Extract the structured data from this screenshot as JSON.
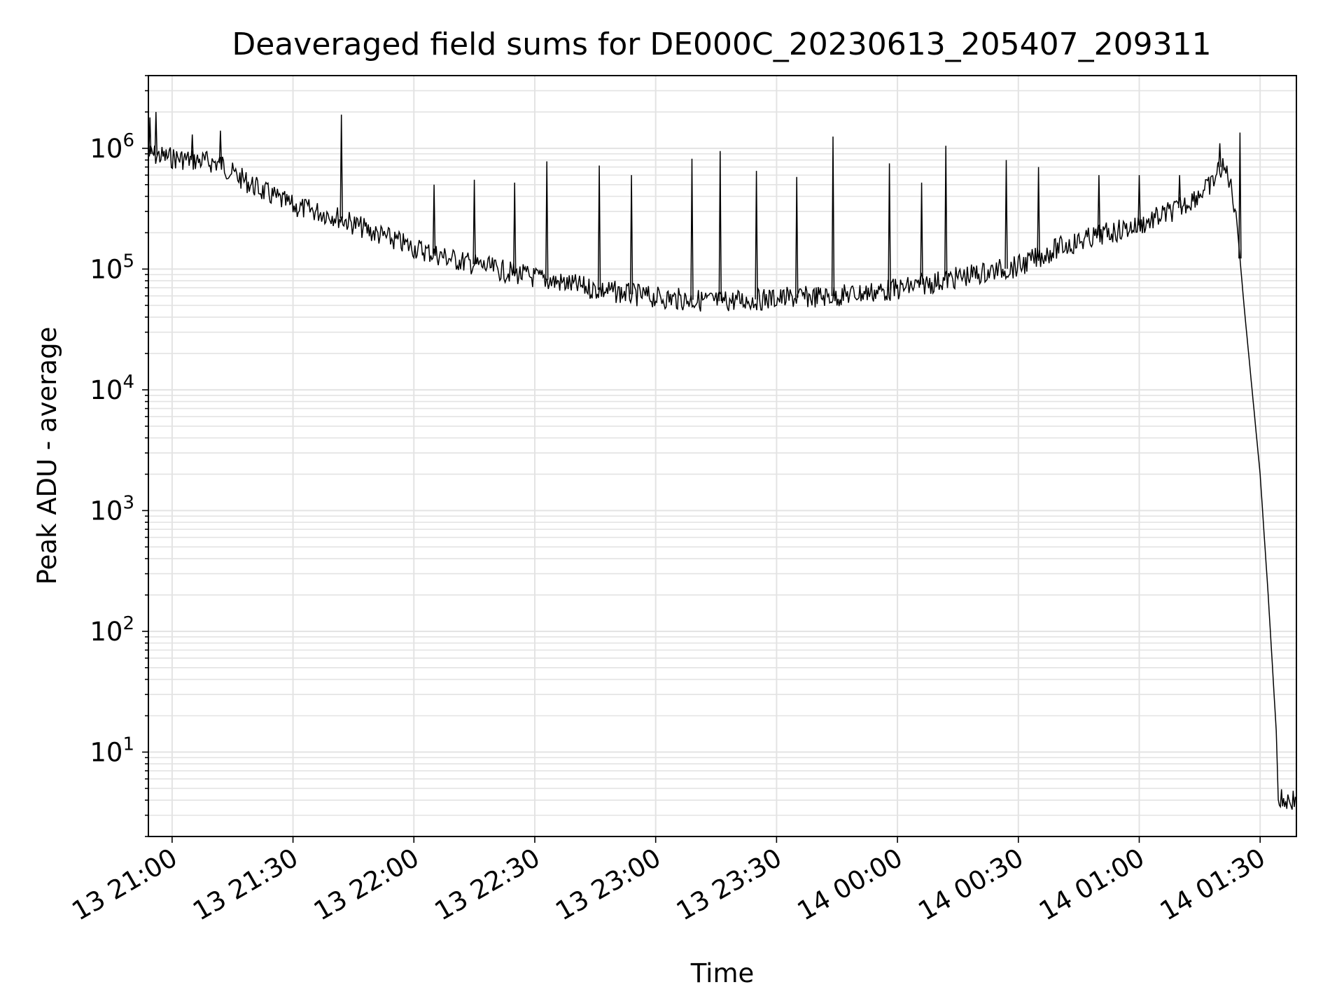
{
  "chart_data": {
    "type": "line",
    "title": "Deaveraged field sums for DE000C_20230613_205407_209311",
    "xlabel": "Time",
    "ylabel": "Peak ADU - average",
    "y_scale": "log",
    "ylim": [
      2,
      4000000
    ],
    "xlim": [
      "2023-06-13 20:54:07",
      "2023-06-14 01:39:00"
    ],
    "grid": true,
    "x_ticks": [
      {
        "value": "2023-06-13 21:00",
        "label": "13 21:00"
      },
      {
        "value": "2023-06-13 21:30",
        "label": "13 21:30"
      },
      {
        "value": "2023-06-13 22:00",
        "label": "13 22:00"
      },
      {
        "value": "2023-06-13 22:30",
        "label": "13 22:30"
      },
      {
        "value": "2023-06-13 23:00",
        "label": "13 23:00"
      },
      {
        "value": "2023-06-13 23:30",
        "label": "13 23:30"
      },
      {
        "value": "2023-06-14 00:00",
        "label": "14 00:00"
      },
      {
        "value": "2023-06-14 00:30",
        "label": "14 00:30"
      },
      {
        "value": "2023-06-14 01:00",
        "label": "14 01:00"
      },
      {
        "value": "2023-06-14 01:30",
        "label": "14 01:30"
      }
    ],
    "y_ticks": [
      {
        "value": 10,
        "base": "10",
        "exp": "1"
      },
      {
        "value": 100,
        "base": "10",
        "exp": "2"
      },
      {
        "value": 1000,
        "base": "10",
        "exp": "3"
      },
      {
        "value": 10000,
        "base": "10",
        "exp": "4"
      },
      {
        "value": 100000,
        "base": "10",
        "exp": "5"
      },
      {
        "value": 1000000,
        "base": "10",
        "exp": "6"
      }
    ],
    "series": [
      {
        "color": "#000000",
        "x": [
          "2023-06-13 20:54:07",
          "2023-06-13 20:58",
          "2023-06-13 21:05",
          "2023-06-13 21:12",
          "2023-06-13 21:15",
          "2023-06-13 21:22",
          "2023-06-13 21:30",
          "2023-06-13 21:40",
          "2023-06-13 21:50",
          "2023-06-13 22:00",
          "2023-06-13 22:10",
          "2023-06-13 22:20",
          "2023-06-13 22:30",
          "2023-06-13 22:45",
          "2023-06-13 23:00",
          "2023-06-13 23:15",
          "2023-06-13 23:30",
          "2023-06-13 23:45",
          "2023-06-14 00:00",
          "2023-06-14 00:15",
          "2023-06-14 00:30",
          "2023-06-14 00:40",
          "2023-06-14 00:50",
          "2023-06-14 01:00",
          "2023-06-14 01:10",
          "2023-06-14 01:18",
          "2023-06-14 01:20",
          "2023-06-14 01:22",
          "2023-06-14 01:24",
          "2023-06-14 01:26",
          "2023-06-14 01:28",
          "2023-06-14 01:30",
          "2023-06-14 01:32",
          "2023-06-14 01:34",
          "2023-06-14 01:34:30",
          "2023-06-14 01:39"
        ],
        "y": [
          900000,
          850000,
          800000,
          750000,
          620000,
          450000,
          330000,
          280000,
          200000,
          150000,
          120000,
          100000,
          85000,
          68000,
          58000,
          54000,
          57000,
          60000,
          68000,
          85000,
          105000,
          150000,
          190000,
          230000,
          320000,
          500000,
          700000,
          620000,
          300000,
          50000,
          10000,
          2000,
          200,
          15,
          4,
          4
        ],
        "spikes": [
          {
            "x": "2023-06-13 20:54:30",
            "y": 1800000
          },
          {
            "x": "2023-06-13 20:56",
            "y": 2000000
          },
          {
            "x": "2023-06-13 21:05",
            "y": 1300000
          },
          {
            "x": "2023-06-13 21:12",
            "y": 1400000
          },
          {
            "x": "2023-06-13 21:42",
            "y": 1900000
          },
          {
            "x": "2023-06-13 22:05",
            "y": 500000
          },
          {
            "x": "2023-06-13 22:15",
            "y": 550000
          },
          {
            "x": "2023-06-13 22:25",
            "y": 520000
          },
          {
            "x": "2023-06-13 22:33",
            "y": 780000
          },
          {
            "x": "2023-06-13 22:46",
            "y": 720000
          },
          {
            "x": "2023-06-13 22:54",
            "y": 600000
          },
          {
            "x": "2023-06-13 23:09",
            "y": 820000
          },
          {
            "x": "2023-06-13 23:16",
            "y": 950000
          },
          {
            "x": "2023-06-13 23:25",
            "y": 650000
          },
          {
            "x": "2023-06-13 23:35",
            "y": 580000
          },
          {
            "x": "2023-06-13 23:44",
            "y": 1250000
          },
          {
            "x": "2023-06-13 23:58",
            "y": 750000
          },
          {
            "x": "2023-06-14 00:06",
            "y": 520000
          },
          {
            "x": "2023-06-14 00:12",
            "y": 1050000
          },
          {
            "x": "2023-06-14 00:27",
            "y": 800000
          },
          {
            "x": "2023-06-14 00:35",
            "y": 700000
          },
          {
            "x": "2023-06-14 00:50",
            "y": 600000
          },
          {
            "x": "2023-06-14 01:00",
            "y": 600000
          },
          {
            "x": "2023-06-14 01:10",
            "y": 600000
          },
          {
            "x": "2023-06-14 01:20",
            "y": 1100000
          },
          {
            "x": "2023-06-14 01:25",
            "y": 1350000
          }
        ]
      }
    ]
  }
}
